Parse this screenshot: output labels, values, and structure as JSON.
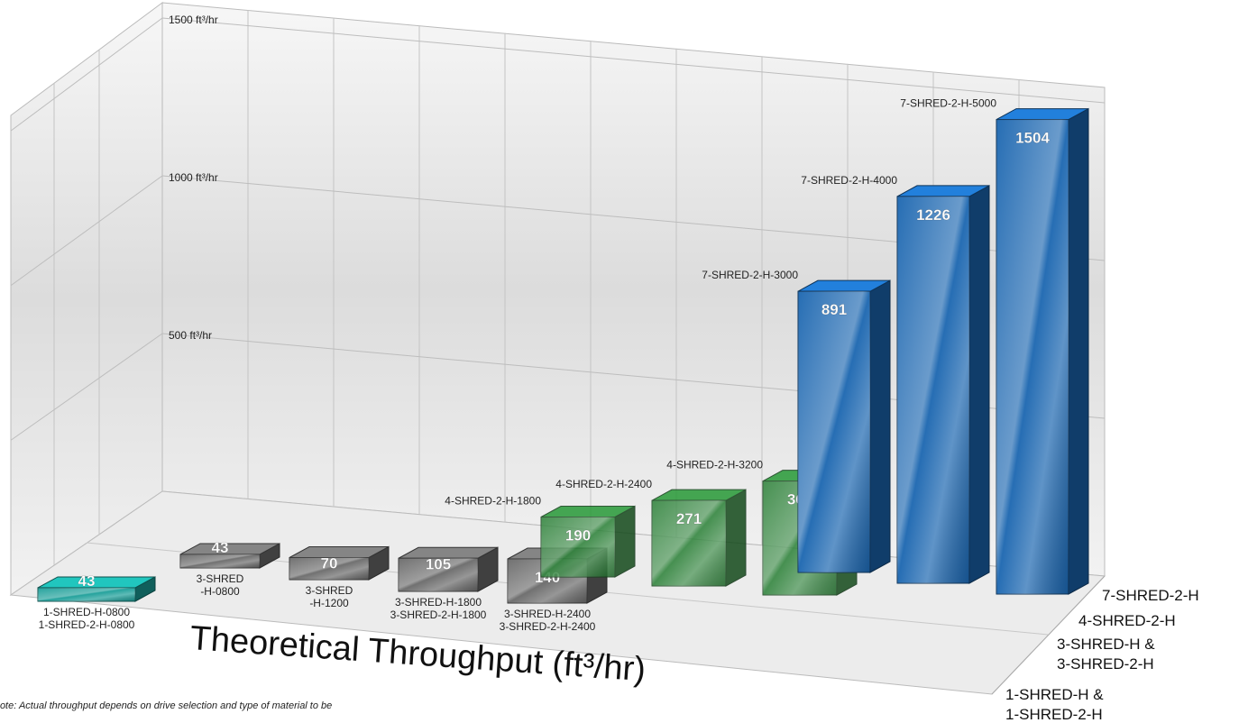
{
  "chart_data": {
    "type": "bar3d",
    "title": "Theoretical Throughput (ft³/hr)",
    "note": "Note: Actual throughput depends on drive selection and type of material to be",
    "ylim": [
      0,
      1550
    ],
    "yticks": [
      {
        "value": 500,
        "label": "500 ft³/hr"
      },
      {
        "value": 1000,
        "label": "1000 ft³/hr"
      },
      {
        "value": 1500,
        "label": "1500 ft³/hr"
      }
    ],
    "grid": true,
    "series": [
      {
        "name": [
          "1-SHRED-H &",
          "1-SHRED-2-H"
        ],
        "color": "#1a9e98",
        "labels": [
          [
            "1-SHRED-H-0800",
            "1-SHRED-2-H-0800"
          ]
        ],
        "values": [
          43
        ]
      },
      {
        "name": [
          "3-SHRED-H &",
          "3-SHRED-2-H"
        ],
        "color": "#6a6a6a",
        "labels": [
          [
            "3-SHRED",
            "-H-0800"
          ],
          [
            "3-SHRED",
            "-H-1200"
          ],
          [
            "3-SHRED-H-1800",
            "3-SHRED-2-H-1800"
          ],
          [
            "3-SHRED-H-2400",
            "3-SHRED-2-H-2400"
          ]
        ],
        "values": [
          43,
          70,
          105,
          140
        ]
      },
      {
        "name": [
          "4-SHRED-2-H"
        ],
        "color": "#1f7a2c",
        "labels": [
          [
            "4-SHRED-2-H-1800"
          ],
          [
            "4-SHRED-2-H-2400"
          ],
          [
            "4-SHRED-2-H-3200"
          ]
        ],
        "values": [
          190,
          271,
          361
        ]
      },
      {
        "name": [
          "7-SHRED-2-H"
        ],
        "color": "#1b66b0",
        "labels": [
          [
            "7-SHRED-2-H-3000"
          ],
          [
            "7-SHRED-2-H-4000"
          ],
          [
            "7-SHRED-2-H-5000"
          ]
        ],
        "values": [
          891,
          1226,
          1504
        ]
      }
    ]
  }
}
